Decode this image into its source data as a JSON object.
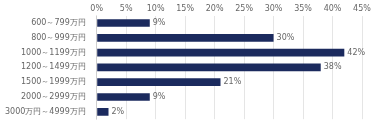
{
  "chart_data": {
    "type": "bar",
    "orientation": "horizontal",
    "categories": [
      "600～799万円",
      "800～999万円",
      "1000～1199万円",
      "1200～1499万円",
      "1500～1999万円",
      "2000～2999万円",
      "3000万円～4999万円"
    ],
    "values": [
      9,
      30,
      42,
      38,
      21,
      9,
      2
    ],
    "value_labels": [
      "9%",
      "30%",
      "42%",
      "38%",
      "21%",
      "9%",
      "2%"
    ],
    "data_labels": true,
    "color": "#1b2a5e",
    "xlim": [
      0,
      45
    ],
    "xticks": [
      {
        "value": 0,
        "label": "0%"
      },
      {
        "value": 5,
        "label": "5%"
      },
      {
        "value": 10,
        "label": "10%"
      },
      {
        "value": 15,
        "label": "15%"
      },
      {
        "value": 20,
        "label": "20%"
      },
      {
        "value": 25,
        "label": "25%"
      },
      {
        "value": 30,
        "label": "30%"
      },
      {
        "value": 35,
        "label": "35%"
      },
      {
        "value": 40,
        "label": "40%"
      },
      {
        "value": 45,
        "label": "45%"
      }
    ],
    "grid": true
  }
}
